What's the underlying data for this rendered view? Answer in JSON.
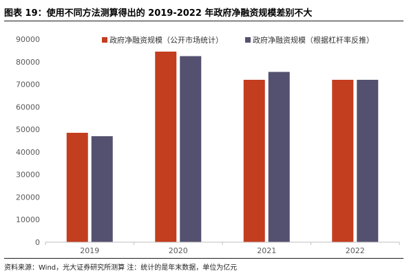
{
  "title": "图表 19：使用不同方法测算得出的 2019-2022 年政府净融资规模差别不大",
  "source": "资料来源：Wind，光大证券研究所测算    注：统计的是年末数据，单位为亿元",
  "chart_data": {
    "type": "bar",
    "categories": [
      "2019",
      "2020",
      "2021",
      "2022"
    ],
    "series": [
      {
        "name": "政府净融资规模（公开市场统计）",
        "color": "#C33D1F",
        "values": [
          48500,
          84500,
          72000,
          72000
        ]
      },
      {
        "name": "政府净融资规模（根据杠杆率反推）",
        "color": "#545170",
        "values": [
          47000,
          82500,
          75500,
          72000
        ]
      }
    ],
    "ylim": [
      0,
      90000
    ],
    "yticks": [
      0,
      10000,
      20000,
      30000,
      40000,
      50000,
      60000,
      70000,
      80000,
      90000
    ],
    "legend_position": "top",
    "grid": false
  }
}
